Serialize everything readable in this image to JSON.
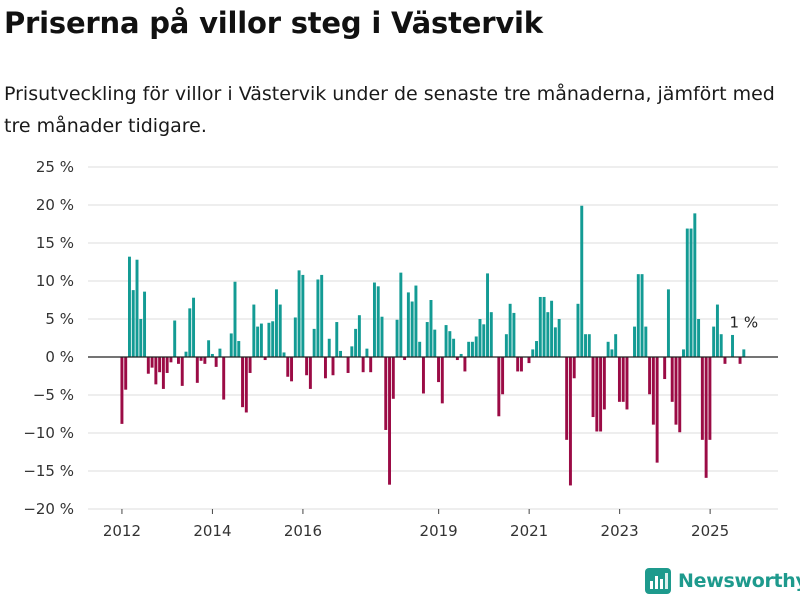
{
  "title": "Priserna på villor steg i Västervik",
  "subtitle": "Prisutveckling för villor i Västervik under de senaste tre månaderna, jämfört med tre månader tidigare.",
  "brand": {
    "name": "Newsworthy",
    "icon": "bar-chart-logo-icon"
  },
  "colors": {
    "positive": "#139b94",
    "negative": "#9b0b45",
    "grid": "#dddddd",
    "zero": "#222222",
    "brand": "#1e9a8d"
  },
  "chart_data": {
    "type": "bar",
    "title": "Priserna på villor steg i Västervik",
    "ylabel": "",
    "xlabel": "",
    "ylim": [
      -20,
      25
    ],
    "yticks": [
      25,
      20,
      15,
      10,
      5,
      0,
      -5,
      -10,
      -15,
      -20
    ],
    "ytick_labels": [
      "25 %",
      "20 %",
      "15 %",
      "10 %",
      "5 %",
      "0 %",
      "−5 %",
      "−10 %",
      "−15 %",
      "−20 %"
    ],
    "x_start": 2012.0,
    "x_step": 0.0833,
    "xlim": [
      2011.25,
      2026.5
    ],
    "xticks": [
      2012,
      2014,
      2016,
      2019,
      2021,
      2023,
      2025
    ],
    "xtick_labels": [
      "2012",
      "2014",
      "2016",
      "2019",
      "2021",
      "2023",
      "2025"
    ],
    "values": [
      -8.8,
      -4.3,
      13.2,
      8.8,
      12.8,
      5.0,
      8.6,
      -2.2,
      -1.4,
      -3.6,
      -2.0,
      -4.2,
      -2.1,
      -0.7,
      4.8,
      -0.9,
      -3.8,
      0.7,
      6.4,
      7.8,
      -3.4,
      -0.5,
      -0.9,
      2.2,
      0.4,
      -1.3,
      1.1,
      -5.6,
      0.0,
      3.1,
      9.9,
      2.1,
      -6.6,
      -7.3,
      -2.1,
      6.9,
      4.0,
      4.4,
      -0.4,
      4.5,
      4.7,
      8.9,
      6.9,
      0.6,
      -2.6,
      -3.2,
      5.2,
      11.4,
      10.8,
      -2.4,
      -4.2,
      3.7,
      10.2,
      10.8,
      -2.8,
      2.4,
      -2.4,
      4.6,
      0.8,
      0.0,
      -2.1,
      1.4,
      3.7,
      5.5,
      -2.0,
      1.1,
      -2.0,
      9.8,
      9.3,
      5.3,
      -9.6,
      -16.8,
      -5.5,
      4.9,
      11.1,
      -0.4,
      8.5,
      7.3,
      9.4,
      2.0,
      -4.8,
      4.6,
      7.5,
      3.6,
      -3.3,
      -6.1,
      4.2,
      3.4,
      2.4,
      -0.4,
      0.4,
      -1.9,
      2.0,
      2.0,
      2.7,
      5.0,
      4.3,
      11.0,
      5.9,
      0.0,
      -7.8,
      -4.9,
      3.0,
      7.0,
      5.8,
      -1.9,
      -1.9,
      0.0,
      -0.8,
      1.0,
      2.1,
      7.9,
      7.9,
      5.9,
      7.4,
      3.9,
      5.0,
      0.0,
      -10.9,
      -16.9,
      -2.8,
      7.0,
      19.9,
      3.0,
      3.0,
      -7.9,
      -9.8,
      -9.8,
      -6.9,
      2.0,
      1.0,
      3.0,
      -5.9,
      -5.9,
      -6.9,
      0.0,
      4.0,
      10.9,
      10.9,
      4.0,
      -4.9,
      -8.9,
      -13.9,
      0.0,
      -2.9,
      8.9,
      -5.9,
      -8.9,
      -9.9,
      1.0,
      16.9,
      16.9,
      18.9,
      5.0,
      -10.9,
      -15.9,
      -10.9,
      4.0,
      6.9,
      3.0,
      -0.9,
      0.0,
      2.9,
      0.0,
      -0.9,
      1.0
    ],
    "annotation": {
      "label": "1 %",
      "value": 1
    }
  }
}
